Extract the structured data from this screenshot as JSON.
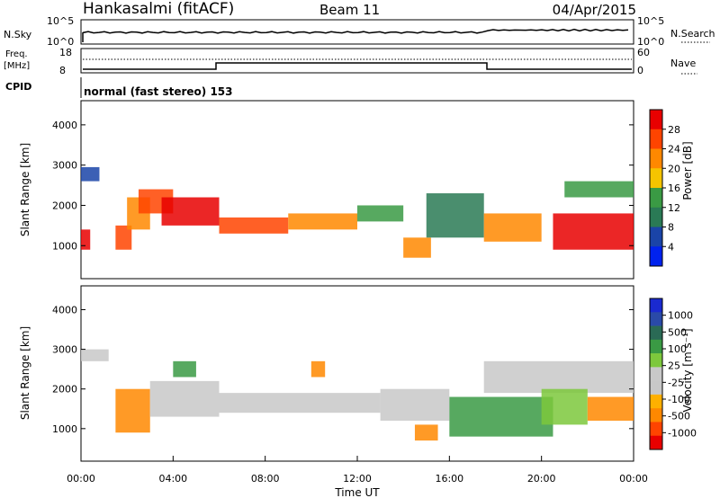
{
  "header": {
    "station": "Hankasalmi (fitACF)",
    "beam": "Beam 11",
    "date": "04/Apr/2015"
  },
  "strips": {
    "nsky_label": "N.Sky",
    "nsky_ticks": [
      "10^5",
      "10^0"
    ],
    "nsearch_label": "N.Search",
    "nsearch_ticks": [
      "10^5",
      "10^0"
    ],
    "freq_label_top": "Freq.",
    "freq_label_unit": "[MHz]",
    "freq_ticks": [
      "18",
      "8"
    ],
    "nave_label": "Nave",
    "nave_ticks": [
      "60",
      "0"
    ],
    "cpid_label": "CPID",
    "cpid_text": "normal (fast stereo) 153"
  },
  "colors": {
    "power_scale": [
      "#0022ee",
      "#1a44a8",
      "#2a7a55",
      "#3a9a44",
      "#f5c400",
      "#ff8800",
      "#ff4400",
      "#e80000"
    ],
    "velocity_scale": [
      "#e80000",
      "#ff4400",
      "#ff8800",
      "#ffb000",
      "#c8c8c8",
      "#c8c8c8",
      "#7dc83c",
      "#3a9a44",
      "#2a6a55",
      "#2a4aa8",
      "#1a2ad0"
    ]
  },
  "chart_data": [
    {
      "type": "heatmap",
      "name": "power",
      "ylabel": "Slant Range [km]",
      "colorbar_label": "Power [dB]",
      "colorbar_ticks": [
        "28",
        "24",
        "20",
        "16",
        "12",
        "8",
        "4"
      ],
      "xlim_hours": [
        0,
        24
      ],
      "ylim": [
        180,
        4600
      ],
      "yticks": [
        1000,
        2000,
        3000,
        4000
      ],
      "ytick_labels": [
        "1000",
        "2000",
        "3000",
        "4000"
      ],
      "echo_bands": [
        {
          "t": [
            0.0,
            0.4
          ],
          "r": [
            900,
            1400
          ],
          "color": "#e80000"
        },
        {
          "t": [
            0.0,
            0.8
          ],
          "r": [
            2600,
            2950
          ],
          "color": "#1a44a8"
        },
        {
          "t": [
            1.5,
            2.2
          ],
          "r": [
            900,
            1500
          ],
          "color": "#ff4400"
        },
        {
          "t": [
            2.0,
            3.0
          ],
          "r": [
            1400,
            2200
          ],
          "color": "#ff8800"
        },
        {
          "t": [
            2.5,
            4.0
          ],
          "r": [
            1800,
            2400
          ],
          "color": "#ff4400"
        },
        {
          "t": [
            3.5,
            6.0
          ],
          "r": [
            1500,
            2200
          ],
          "color": "#e80000"
        },
        {
          "t": [
            6.0,
            9.0
          ],
          "r": [
            1300,
            1700
          ],
          "color": "#ff4400"
        },
        {
          "t": [
            9.0,
            12.0
          ],
          "r": [
            1400,
            1800
          ],
          "color": "#ff8800"
        },
        {
          "t": [
            12.0,
            14.0
          ],
          "r": [
            1600,
            2000
          ],
          "color": "#3a9a44"
        },
        {
          "t": [
            14.0,
            15.2
          ],
          "r": [
            700,
            1200
          ],
          "color": "#ff8800"
        },
        {
          "t": [
            15.0,
            17.5
          ],
          "r": [
            1200,
            2300
          ],
          "color": "#2a7a55"
        },
        {
          "t": [
            17.5,
            20.0
          ],
          "r": [
            1100,
            1800
          ],
          "color": "#ff8800"
        },
        {
          "t": [
            20.5,
            24.0
          ],
          "r": [
            900,
            1800
          ],
          "color": "#e80000"
        },
        {
          "t": [
            21.0,
            24.0
          ],
          "r": [
            2200,
            2600
          ],
          "color": "#3a9a44"
        }
      ]
    },
    {
      "type": "heatmap",
      "name": "velocity",
      "ylabel": "Slant Range [km]",
      "xlabel": "Time UT",
      "colorbar_label": "Velocity [m s⁻¹]",
      "colorbar_ticks": [
        "1000",
        "500",
        "100",
        "25",
        "-25",
        "-100",
        "-500",
        "-1000"
      ],
      "xlim_hours": [
        0,
        24
      ],
      "ylim": [
        180,
        4600
      ],
      "yticks": [
        1000,
        2000,
        3000,
        4000
      ],
      "ytick_labels": [
        "1000",
        "2000",
        "3000",
        "4000"
      ],
      "xticks_hours": [
        0,
        4,
        8,
        12,
        16,
        20,
        24
      ],
      "xtick_labels": [
        "00:00",
        "04:00",
        "08:00",
        "12:00",
        "16:00",
        "20:00",
        "00:00"
      ],
      "echo_bands": [
        {
          "t": [
            0.0,
            1.2
          ],
          "r": [
            2700,
            3000
          ],
          "color": "#c8c8c8"
        },
        {
          "t": [
            1.5,
            3.0
          ],
          "r": [
            900,
            2000
          ],
          "color": "#ff8800"
        },
        {
          "t": [
            3.0,
            6.0
          ],
          "r": [
            1300,
            2200
          ],
          "color": "#c8c8c8"
        },
        {
          "t": [
            4.0,
            5.0
          ],
          "r": [
            2300,
            2700
          ],
          "color": "#3a9a44"
        },
        {
          "t": [
            6.0,
            13.0
          ],
          "r": [
            1400,
            1900
          ],
          "color": "#c8c8c8"
        },
        {
          "t": [
            10.0,
            10.6
          ],
          "r": [
            2300,
            2700
          ],
          "color": "#ff8800"
        },
        {
          "t": [
            13.0,
            16.0
          ],
          "r": [
            1200,
            2000
          ],
          "color": "#c8c8c8"
        },
        {
          "t": [
            14.5,
            15.5
          ],
          "r": [
            700,
            1100
          ],
          "color": "#ff8800"
        },
        {
          "t": [
            16.0,
            20.5
          ],
          "r": [
            800,
            1800
          ],
          "color": "#3a9a44"
        },
        {
          "t": [
            17.5,
            24.0
          ],
          "r": [
            1900,
            2700
          ],
          "color": "#c8c8c8"
        },
        {
          "t": [
            20.0,
            22.0
          ],
          "r": [
            1100,
            2000
          ],
          "color": "#7dc83c"
        },
        {
          "t": [
            22.0,
            24.0
          ],
          "r": [
            1200,
            1800
          ],
          "color": "#ff8800"
        }
      ]
    }
  ]
}
